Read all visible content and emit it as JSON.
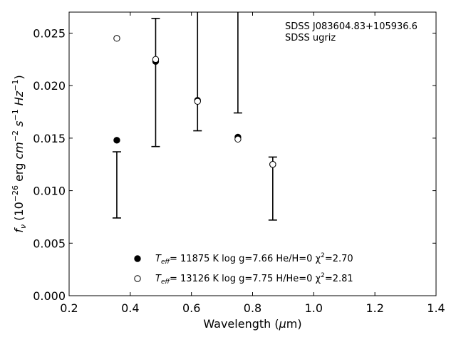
{
  "chart_data": {
    "type": "scatter",
    "xlabel": "Wavelength (μm)",
    "ylabel": "f_ν (10^-26 erg cm^-2 s^-1 Hz^-1)",
    "xlim": [
      0.2,
      1.4
    ],
    "ylim": [
      0.0,
      0.027
    ],
    "x_ticks": [
      "0.2",
      "0.4",
      "0.6",
      "0.8",
      "1.0",
      "1.2",
      "1.4"
    ],
    "y_ticks": [
      "0.000",
      "0.005",
      "0.010",
      "0.015",
      "0.020",
      "0.025"
    ],
    "annotation": [
      "SDSS J083604.83+105936.6",
      "SDSS ugriz"
    ],
    "observed": [
      {
        "band": "u",
        "x": 0.356,
        "low": 0.0074,
        "high": 0.0137
      },
      {
        "band": "g",
        "x": 0.483,
        "low": 0.0142,
        "high": 0.0264
      },
      {
        "band": "r",
        "x": 0.62,
        "low": 0.0157,
        "high": 0.0285
      },
      {
        "band": "i",
        "x": 0.752,
        "low": 0.0174,
        "high": 0.029
      },
      {
        "band": "z",
        "x": 0.866,
        "low": 0.0072,
        "high": 0.0132
      }
    ],
    "series": [
      {
        "name": "T_eff= 11875 K  log g=7.66  He/H=0  χ²=2.70",
        "marker": "filled",
        "x": [
          0.356,
          0.483,
          0.62,
          0.752,
          0.866
        ],
        "y": [
          0.0148,
          0.0223,
          0.0186,
          0.0151,
          0.0125
        ]
      },
      {
        "name": "T_eff= 13126 K  log g=7.75  H/He=0  χ²=2.81",
        "marker": "open",
        "x": [
          0.356,
          0.483,
          0.62,
          0.752,
          0.866
        ],
        "y": [
          0.0245,
          0.0225,
          0.0185,
          0.0149,
          0.0125
        ]
      }
    ],
    "legend": {
      "placement": "lower-center",
      "entries": [
        {
          "teff_label": "T",
          "teff_sub": "eff",
          "text": "= 11875 K  log g=7.66  He/H=0  χ",
          "chi_sup": "2",
          "chi_val": "=2.70"
        },
        {
          "teff_label": "T",
          "teff_sub": "eff",
          "text": "= 13126 K  log g=7.75  H/He=0  χ",
          "chi_sup": "2",
          "chi_val": "=2.81"
        }
      ]
    },
    "grid": false
  }
}
